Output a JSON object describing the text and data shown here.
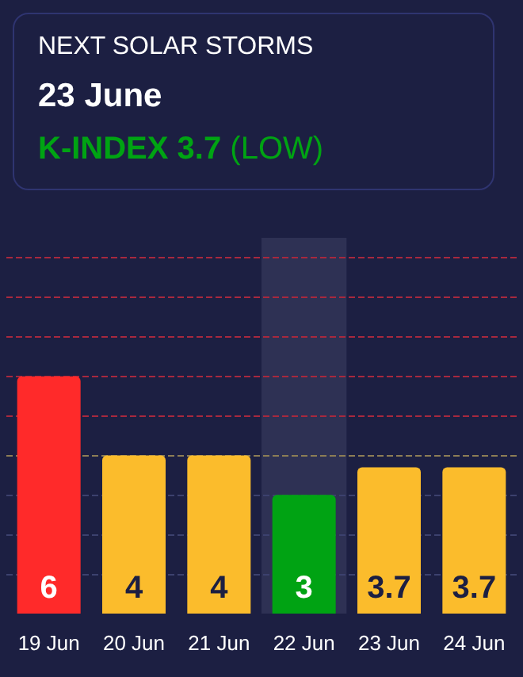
{
  "chart_data": {
    "type": "bar",
    "title": "NEXT SOLAR STORMS",
    "subtitle": "23 June",
    "annotations": [
      "K-INDEX 3.7",
      "(LOW)"
    ],
    "categories": [
      "19 Jun",
      "20 Jun",
      "21 Jun",
      "22 Jun",
      "23 Jun",
      "24 Jun"
    ],
    "values": [
      6,
      4,
      4,
      3,
      3.7,
      3.7
    ],
    "colors": [
      "#ff2a2a",
      "#fbbc2c",
      "#fbbc2c",
      "#00a313",
      "#fbbc2c",
      "#fbbc2c"
    ],
    "ylim": [
      0,
      9.5
    ],
    "tick_labels": "x",
    "data_labels": true,
    "ref_lines": [
      {
        "axis": "y",
        "value": 9,
        "color": "#a8283e",
        "line_style": "dashed"
      },
      {
        "axis": "y",
        "value": 8,
        "color": "#a8283e",
        "line_style": "dashed"
      },
      {
        "axis": "y",
        "value": 7,
        "color": "#a8283e",
        "line_style": "dashed"
      },
      {
        "axis": "y",
        "value": 6,
        "color": "#a8283e",
        "line_style": "dashed"
      },
      {
        "axis": "y",
        "value": 5,
        "color": "#a8283e",
        "line_style": "dashed"
      },
      {
        "axis": "y",
        "value": 4,
        "color": "#8c7d55",
        "line_style": "dashed"
      },
      {
        "axis": "y",
        "value": 3,
        "color": "#3c416e",
        "line_style": "dashed"
      },
      {
        "axis": "y",
        "value": 2,
        "color": "#3c416e",
        "line_style": "dashed"
      },
      {
        "axis": "y",
        "value": 1,
        "color": "#3c416e",
        "line_style": "dashed"
      }
    ],
    "bands": [
      {
        "axis": "x",
        "from": "22 Jun",
        "to": "22 Jun",
        "color": "#2e3154"
      }
    ]
  }
}
